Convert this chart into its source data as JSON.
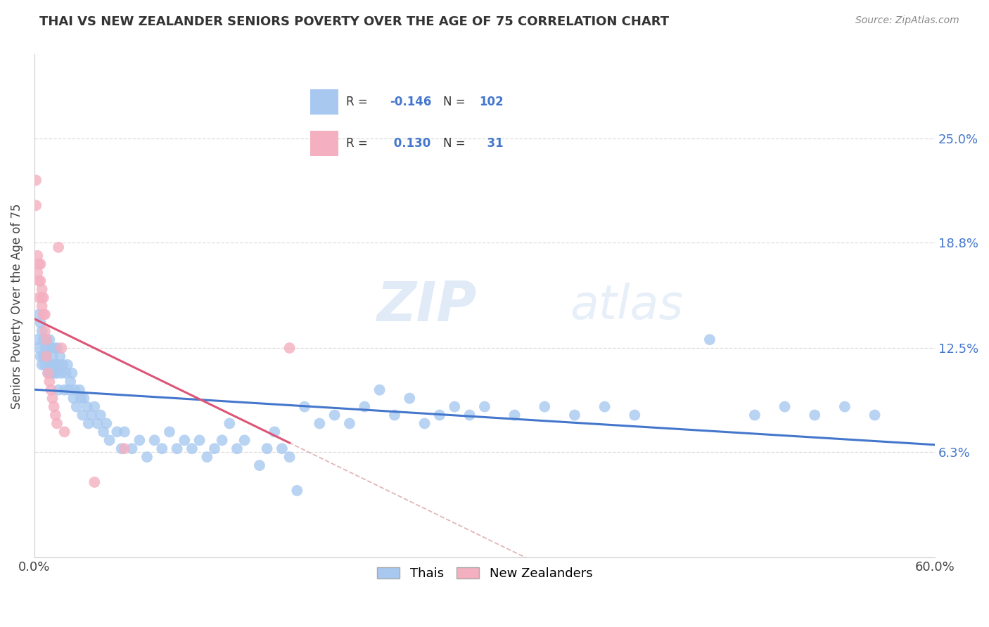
{
  "title": "THAI VS NEW ZEALANDER SENIORS POVERTY OVER THE AGE OF 75 CORRELATION CHART",
  "source": "Source: ZipAtlas.com",
  "ylabel": "Seniors Poverty Over the Age of 75",
  "xlim": [
    0,
    0.6
  ],
  "ylim": [
    0,
    0.3
  ],
  "yticks": [
    0.063,
    0.125,
    0.188,
    0.25
  ],
  "ytick_labels": [
    "6.3%",
    "12.5%",
    "18.8%",
    "25.0%"
  ],
  "xticks": [
    0.0,
    0.1,
    0.2,
    0.3,
    0.4,
    0.5,
    0.6
  ],
  "xtick_labels": [
    "0.0%",
    "",
    "",
    "",
    "",
    "",
    "60.0%"
  ],
  "thai_color": "#a8c8f0",
  "nz_color": "#f4afc0",
  "trendline_thai_color": "#4477cc",
  "trendline_nz_color": "#dd5577",
  "trendline_dashed_color": "#ddaaaa",
  "watermark": "ZIPatlas",
  "thai_x": [
    0.002,
    0.003,
    0.003,
    0.004,
    0.004,
    0.005,
    0.005,
    0.006,
    0.006,
    0.007,
    0.007,
    0.008,
    0.008,
    0.009,
    0.009,
    0.01,
    0.01,
    0.011,
    0.011,
    0.012,
    0.012,
    0.013,
    0.013,
    0.014,
    0.015,
    0.015,
    0.016,
    0.016,
    0.017,
    0.018,
    0.019,
    0.02,
    0.021,
    0.022,
    0.023,
    0.024,
    0.025,
    0.026,
    0.027,
    0.028,
    0.03,
    0.031,
    0.032,
    0.033,
    0.035,
    0.036,
    0.038,
    0.04,
    0.042,
    0.044,
    0.046,
    0.048,
    0.05,
    0.055,
    0.058,
    0.06,
    0.065,
    0.07,
    0.075,
    0.08,
    0.085,
    0.09,
    0.095,
    0.1,
    0.105,
    0.11,
    0.115,
    0.12,
    0.125,
    0.13,
    0.135,
    0.14,
    0.15,
    0.155,
    0.16,
    0.165,
    0.17,
    0.175,
    0.18,
    0.19,
    0.2,
    0.21,
    0.22,
    0.23,
    0.24,
    0.25,
    0.26,
    0.27,
    0.28,
    0.29,
    0.3,
    0.32,
    0.34,
    0.36,
    0.38,
    0.4,
    0.45,
    0.48,
    0.5,
    0.52,
    0.54,
    0.56
  ],
  "thai_y": [
    0.13,
    0.145,
    0.125,
    0.14,
    0.12,
    0.135,
    0.115,
    0.13,
    0.12,
    0.125,
    0.115,
    0.13,
    0.12,
    0.125,
    0.11,
    0.13,
    0.115,
    0.125,
    0.11,
    0.12,
    0.115,
    0.125,
    0.11,
    0.115,
    0.125,
    0.11,
    0.115,
    0.1,
    0.12,
    0.11,
    0.115,
    0.1,
    0.11,
    0.115,
    0.1,
    0.105,
    0.11,
    0.095,
    0.1,
    0.09,
    0.1,
    0.095,
    0.085,
    0.095,
    0.09,
    0.08,
    0.085,
    0.09,
    0.08,
    0.085,
    0.075,
    0.08,
    0.07,
    0.075,
    0.065,
    0.075,
    0.065,
    0.07,
    0.06,
    0.07,
    0.065,
    0.075,
    0.065,
    0.07,
    0.065,
    0.07,
    0.06,
    0.065,
    0.07,
    0.08,
    0.065,
    0.07,
    0.055,
    0.065,
    0.075,
    0.065,
    0.06,
    0.04,
    0.09,
    0.08,
    0.085,
    0.08,
    0.09,
    0.1,
    0.085,
    0.095,
    0.08,
    0.085,
    0.09,
    0.085,
    0.09,
    0.085,
    0.09,
    0.085,
    0.09,
    0.085,
    0.13,
    0.085,
    0.09,
    0.085,
    0.09,
    0.085
  ],
  "nz_x": [
    0.001,
    0.001,
    0.002,
    0.002,
    0.003,
    0.003,
    0.003,
    0.004,
    0.004,
    0.005,
    0.005,
    0.005,
    0.006,
    0.006,
    0.007,
    0.007,
    0.008,
    0.008,
    0.009,
    0.01,
    0.011,
    0.012,
    0.013,
    0.014,
    0.015,
    0.016,
    0.018,
    0.02,
    0.04,
    0.06,
    0.17
  ],
  "nz_y": [
    0.225,
    0.21,
    0.18,
    0.17,
    0.175,
    0.165,
    0.155,
    0.175,
    0.165,
    0.16,
    0.155,
    0.15,
    0.155,
    0.145,
    0.145,
    0.135,
    0.13,
    0.12,
    0.11,
    0.105,
    0.1,
    0.095,
    0.09,
    0.085,
    0.08,
    0.185,
    0.125,
    0.075,
    0.045,
    0.065,
    0.125
  ]
}
